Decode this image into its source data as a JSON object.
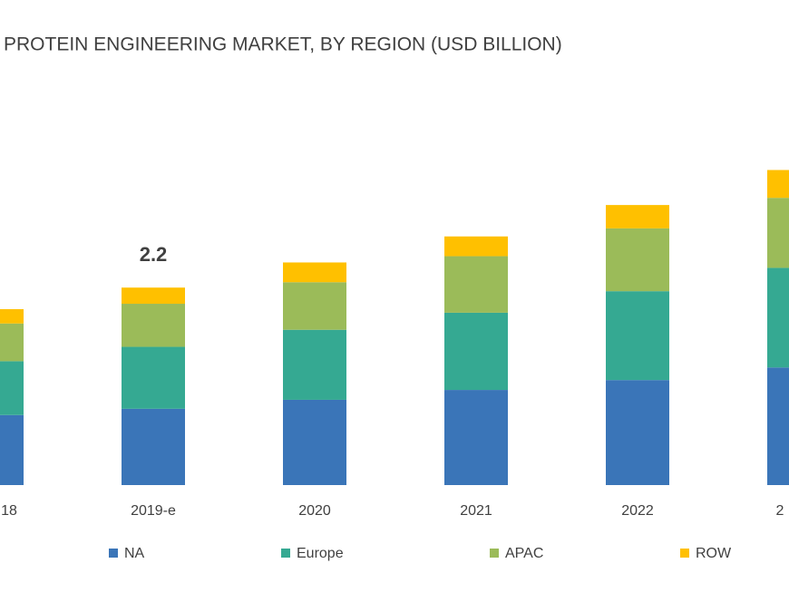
{
  "chart_data": {
    "type": "stacked_bar",
    "title": "PROTEIN ENGINEERING MARKET, BY REGION (USD BILLION)",
    "categories": [
      "18",
      "2019-e",
      "2020",
      "2021",
      "2022",
      "2"
    ],
    "series": [
      {
        "name": "NA",
        "color": "#3a75b8",
        "values": [
          0.78,
          0.85,
          0.95,
          1.06,
          1.17,
          1.31
        ]
      },
      {
        "name": "Europe",
        "color": "#35a992",
        "values": [
          0.6,
          0.69,
          0.78,
          0.86,
          0.99,
          1.11
        ]
      },
      {
        "name": "APAC",
        "color": "#9bbb59",
        "values": [
          0.42,
          0.48,
          0.53,
          0.63,
          0.7,
          0.78
        ]
      },
      {
        "name": "ROW",
        "color": "#ffc000",
        "values": [
          0.16,
          0.18,
          0.22,
          0.22,
          0.26,
          0.31
        ]
      }
    ],
    "total_label": {
      "category": "2019-e",
      "value": 2.2
    },
    "legend": "bottom"
  }
}
